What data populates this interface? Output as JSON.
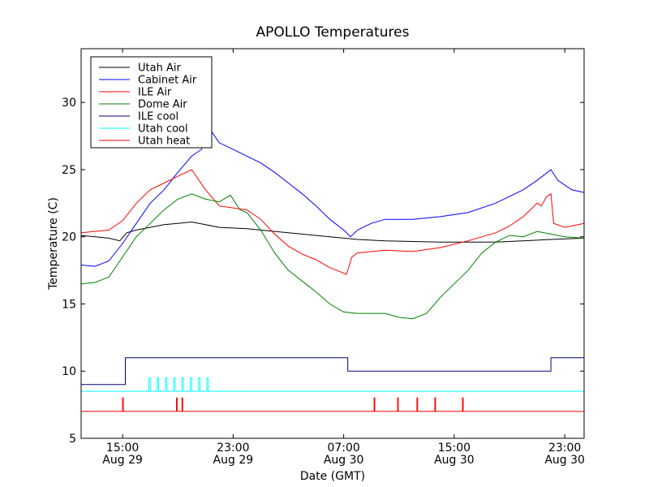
{
  "chart_data": {
    "type": "line",
    "title": "APOLLO Temperatures",
    "xlabel": "Date (GMT)",
    "ylabel": "Temperature (C)",
    "ylim": [
      5,
      34
    ],
    "xlim": [
      12.0,
      48.4
    ],
    "x_unit": "hours since Aug 29 00:00 GMT",
    "yticks": [
      5,
      10,
      15,
      20,
      25,
      30
    ],
    "xticks": [
      {
        "x": 15,
        "label1": "15:00",
        "label2": "Aug 29"
      },
      {
        "x": 23,
        "label1": "23:00",
        "label2": "Aug 29"
      },
      {
        "x": 31,
        "label1": "07:00",
        "label2": "Aug 30"
      },
      {
        "x": 39,
        "label1": "15:00",
        "label2": "Aug 30"
      },
      {
        "x": 47,
        "label1": "23:00",
        "label2": "Aug 30"
      }
    ],
    "legend_position": "top-left",
    "series": [
      {
        "name": "Utah Air",
        "color": "#000000",
        "points": [
          [
            12,
            20.1
          ],
          [
            14,
            19.9
          ],
          [
            14.8,
            19.7
          ],
          [
            15.3,
            20.3
          ],
          [
            16,
            20.5
          ],
          [
            17,
            20.7
          ],
          [
            18,
            20.9
          ],
          [
            19,
            21.0
          ],
          [
            20,
            21.1
          ],
          [
            21,
            20.9
          ],
          [
            22,
            20.7
          ],
          [
            24,
            20.6
          ],
          [
            26,
            20.4
          ],
          [
            28,
            20.2
          ],
          [
            30,
            20.0
          ],
          [
            32,
            19.8
          ],
          [
            34,
            19.7
          ],
          [
            38,
            19.6
          ],
          [
            40,
            19.6
          ],
          [
            42,
            19.6
          ],
          [
            44,
            19.7
          ],
          [
            46,
            19.8
          ],
          [
            48.4,
            19.9
          ]
        ]
      },
      {
        "name": "Cabinet Air",
        "color": "#0000ff",
        "points": [
          [
            12,
            17.9
          ],
          [
            13,
            17.8
          ],
          [
            14,
            18.2
          ],
          [
            15,
            19.5
          ],
          [
            16,
            21.0
          ],
          [
            17,
            22.5
          ],
          [
            18,
            23.5
          ],
          [
            19,
            24.8
          ],
          [
            20,
            26.0
          ],
          [
            20.7,
            26.5
          ],
          [
            21.2,
            28.2
          ],
          [
            22,
            27.0
          ],
          [
            23,
            26.5
          ],
          [
            24,
            26.0
          ],
          [
            25,
            25.5
          ],
          [
            26,
            24.8
          ],
          [
            27,
            24.0
          ],
          [
            28,
            23.2
          ],
          [
            29,
            22.3
          ],
          [
            30,
            21.3
          ],
          [
            31,
            20.5
          ],
          [
            31.5,
            20.0
          ],
          [
            32,
            20.5
          ],
          [
            33,
            21.0
          ],
          [
            34,
            21.3
          ],
          [
            36,
            21.3
          ],
          [
            38,
            21.5
          ],
          [
            40,
            21.8
          ],
          [
            42,
            22.5
          ],
          [
            44,
            23.5
          ],
          [
            45,
            24.2
          ],
          [
            46,
            25.0
          ],
          [
            46.5,
            24.2
          ],
          [
            47.5,
            23.5
          ],
          [
            48.4,
            23.3
          ]
        ]
      },
      {
        "name": "ILE Air",
        "color": "#ff0000",
        "points": [
          [
            12,
            20.3
          ],
          [
            14,
            20.5
          ],
          [
            15,
            21.2
          ],
          [
            16,
            22.5
          ],
          [
            17,
            23.5
          ],
          [
            18,
            24.0
          ],
          [
            19,
            24.5
          ],
          [
            20,
            25.0
          ],
          [
            21,
            23.5
          ],
          [
            22,
            22.3
          ],
          [
            24,
            22.0
          ],
          [
            25,
            21.3
          ],
          [
            26,
            20.2
          ],
          [
            27,
            19.3
          ],
          [
            28,
            18.7
          ],
          [
            29,
            18.3
          ],
          [
            30,
            17.7
          ],
          [
            31,
            17.3
          ],
          [
            31.2,
            17.2
          ],
          [
            31.6,
            18.5
          ],
          [
            32,
            18.8
          ],
          [
            34,
            19.0
          ],
          [
            36,
            18.9
          ],
          [
            38,
            19.2
          ],
          [
            40,
            19.7
          ],
          [
            42,
            20.3
          ],
          [
            43,
            20.8
          ],
          [
            44,
            21.5
          ],
          [
            45,
            22.5
          ],
          [
            45.3,
            22.3
          ],
          [
            45.7,
            23.0
          ],
          [
            46,
            23.2
          ],
          [
            46.2,
            21.0
          ],
          [
            47,
            20.7
          ],
          [
            48.4,
            21.0
          ]
        ]
      },
      {
        "name": "Dome Air",
        "color": "#008000",
        "points": [
          [
            12,
            16.5
          ],
          [
            13,
            16.6
          ],
          [
            14,
            17.0
          ],
          [
            15,
            18.5
          ],
          [
            16,
            20.0
          ],
          [
            17,
            21.0
          ],
          [
            18,
            22.0
          ],
          [
            19,
            22.8
          ],
          [
            20,
            23.2
          ],
          [
            21,
            22.8
          ],
          [
            22,
            22.6
          ],
          [
            22.8,
            23.1
          ],
          [
            23.5,
            22.0
          ],
          [
            24,
            21.8
          ],
          [
            25,
            20.5
          ],
          [
            26,
            18.8
          ],
          [
            27,
            17.5
          ],
          [
            28,
            16.7
          ],
          [
            29,
            15.9
          ],
          [
            30,
            15.0
          ],
          [
            31,
            14.4
          ],
          [
            32,
            14.3
          ],
          [
            34,
            14.3
          ],
          [
            35,
            14.0
          ],
          [
            36,
            13.9
          ],
          [
            37,
            14.3
          ],
          [
            38,
            15.5
          ],
          [
            39,
            16.5
          ],
          [
            40,
            17.5
          ],
          [
            41,
            18.8
          ],
          [
            42,
            19.6
          ],
          [
            43,
            20.1
          ],
          [
            44,
            20.0
          ],
          [
            45,
            20.4
          ],
          [
            46,
            20.2
          ],
          [
            47,
            20.0
          ],
          [
            48.4,
            19.9
          ]
        ]
      },
      {
        "name": "ILE cool",
        "color": "#000080",
        "points": [
          [
            12,
            9.0
          ],
          [
            15.2,
            9.0
          ],
          [
            15.2,
            11.0
          ],
          [
            31.3,
            11.0
          ],
          [
            31.3,
            10.0
          ],
          [
            46,
            10.0
          ],
          [
            46,
            11.0
          ],
          [
            48.4,
            11.0
          ]
        ]
      },
      {
        "name": "Utah cool",
        "color": "#00ffff",
        "points": [
          [
            12,
            8.5
          ],
          [
            16.9,
            8.5
          ],
          [
            16.9,
            9.5
          ],
          [
            17.0,
            9.5
          ],
          [
            17.0,
            8.5
          ],
          [
            17.5,
            8.5
          ],
          [
            17.5,
            9.5
          ],
          [
            17.6,
            9.5
          ],
          [
            17.6,
            8.5
          ],
          [
            18.1,
            8.5
          ],
          [
            18.1,
            9.5
          ],
          [
            18.2,
            9.5
          ],
          [
            18.2,
            8.5
          ],
          [
            18.7,
            8.5
          ],
          [
            18.7,
            9.5
          ],
          [
            18.8,
            9.5
          ],
          [
            18.8,
            8.5
          ],
          [
            19.3,
            8.5
          ],
          [
            19.3,
            9.5
          ],
          [
            19.4,
            9.5
          ],
          [
            19.4,
            8.5
          ],
          [
            19.9,
            8.5
          ],
          [
            19.9,
            9.5
          ],
          [
            20.0,
            9.5
          ],
          [
            20.0,
            8.5
          ],
          [
            20.5,
            8.5
          ],
          [
            20.5,
            9.5
          ],
          [
            20.6,
            9.5
          ],
          [
            20.6,
            8.5
          ],
          [
            21.1,
            8.5
          ],
          [
            21.1,
            9.5
          ],
          [
            21.2,
            9.5
          ],
          [
            21.2,
            8.5
          ],
          [
            48.4,
            8.5
          ]
        ]
      },
      {
        "name": "Utah heat",
        "color": "#ff0000",
        "points": [
          [
            12,
            7.0
          ],
          [
            15.0,
            7.0
          ],
          [
            15.0,
            8.0
          ],
          [
            15.05,
            8.0
          ],
          [
            15.05,
            7.0
          ],
          [
            18.9,
            7.0
          ],
          [
            18.9,
            8.0
          ],
          [
            18.95,
            8.0
          ],
          [
            18.95,
            7.0
          ],
          [
            19.3,
            7.0
          ],
          [
            19.3,
            8.0
          ],
          [
            19.35,
            8.0
          ],
          [
            19.35,
            7.0
          ],
          [
            33.2,
            7.0
          ],
          [
            33.2,
            8.0
          ],
          [
            33.25,
            8.0
          ],
          [
            33.25,
            7.0
          ],
          [
            34.9,
            7.0
          ],
          [
            34.9,
            8.0
          ],
          [
            34.95,
            8.0
          ],
          [
            34.95,
            7.0
          ],
          [
            36.3,
            7.0
          ],
          [
            36.3,
            8.0
          ],
          [
            36.35,
            8.0
          ],
          [
            36.35,
            7.0
          ],
          [
            37.6,
            7.0
          ],
          [
            37.6,
            8.0
          ],
          [
            37.65,
            8.0
          ],
          [
            37.65,
            7.0
          ],
          [
            39.6,
            7.0
          ],
          [
            39.6,
            8.0
          ],
          [
            39.65,
            8.0
          ],
          [
            39.65,
            7.0
          ],
          [
            48.4,
            7.0
          ]
        ]
      }
    ]
  }
}
